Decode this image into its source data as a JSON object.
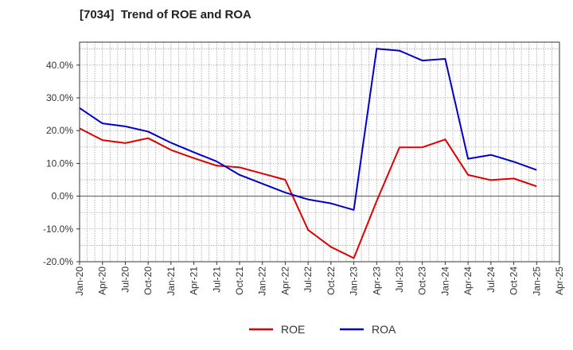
{
  "chart_data": {
    "type": "line",
    "title": "[7034]  Trend of ROE and ROA",
    "xlabel": "",
    "ylabel": "",
    "ylim": [
      -20,
      47
    ],
    "y_ticks": [
      -20,
      -10,
      0,
      10,
      20,
      30,
      40
    ],
    "y_tick_labels": [
      "-20.0%",
      "-10.0%",
      "0.0%",
      "10.0%",
      "20.0%",
      "30.0%",
      "40.0%"
    ],
    "x_tick_labels": [
      "Jan-20",
      "Apr-20",
      "Jul-20",
      "Oct-20",
      "Jan-21",
      "Apr-21",
      "Jul-21",
      "Oct-21",
      "Jan-22",
      "Apr-22",
      "Jul-22",
      "Oct-22",
      "Jan-23",
      "Apr-23",
      "Jul-23",
      "Oct-23",
      "Jan-24",
      "Apr-24",
      "Jul-24",
      "Oct-24",
      "Jan-25",
      "Apr-25"
    ],
    "x": [
      "Jan-20",
      "Apr-20",
      "Jul-20",
      "Oct-20",
      "Jan-21",
      "Apr-21",
      "Jul-21",
      "Oct-21",
      "Jan-22",
      "Apr-22",
      "Jul-22",
      "Oct-22",
      "Jan-23",
      "Apr-23",
      "Jul-23",
      "Oct-23",
      "Jan-24",
      "Apr-24",
      "Jul-24",
      "Oct-24",
      "Jan-25"
    ],
    "grid": true,
    "legend_position": "bottom",
    "series": [
      {
        "name": "ROE",
        "color": "#e00000",
        "values": [
          20.7,
          17.1,
          16.2,
          17.7,
          14.1,
          11.6,
          9.3,
          8.8,
          6.9,
          5.0,
          -10.3,
          -15.5,
          -18.9,
          -1.5,
          14.9,
          14.9,
          17.3,
          6.5,
          4.9,
          5.4,
          3.0
        ]
      },
      {
        "name": "ROA",
        "color": "#0000cc",
        "values": [
          26.9,
          22.2,
          21.3,
          19.7,
          16.3,
          13.4,
          10.6,
          6.5,
          3.8,
          1.1,
          -1.0,
          -2.2,
          -4.2,
          45.0,
          44.4,
          41.4,
          41.9,
          11.4,
          12.6,
          10.5,
          8.0
        ]
      }
    ]
  }
}
